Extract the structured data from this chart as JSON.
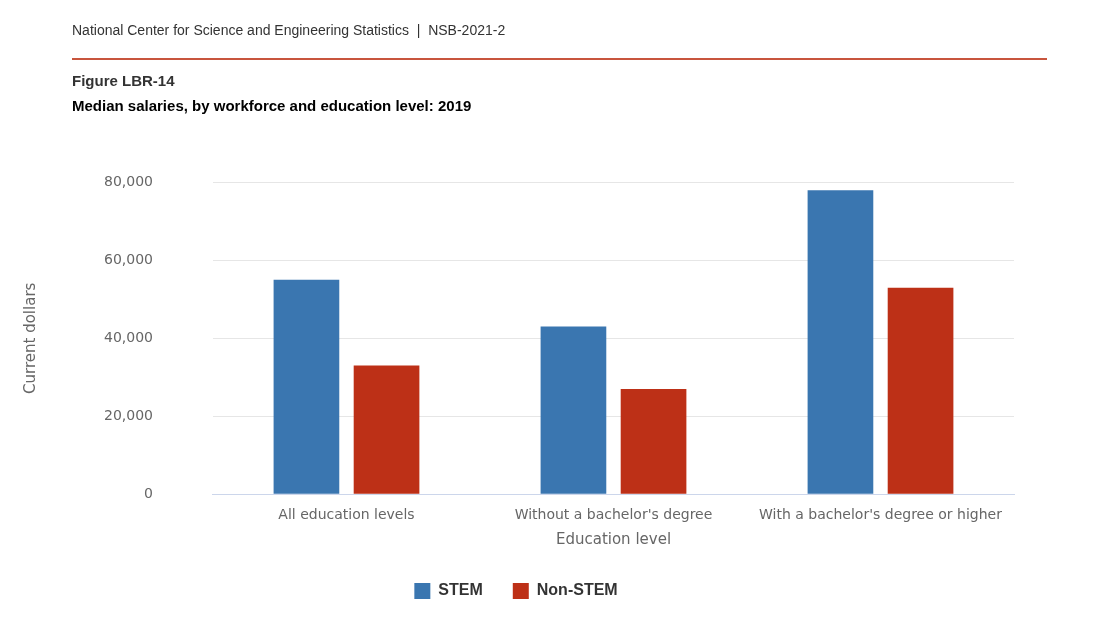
{
  "chart_data": {
    "type": "bar",
    "title": "Median salaries, by workforce and education level: 2019",
    "annotations": [
      "National Center for Science and Engineering Statistics  |  NSB-2021-2",
      "Figure LBR-14"
    ],
    "xlabel": "Education level",
    "ylabel": "Current dollars",
    "categories": [
      "All education levels",
      "Without a bachelor's degree",
      "With a bachelor's degree or higher"
    ],
    "series": [
      {
        "name": "STEM",
        "color": "#3a76b0",
        "values": [
          55000,
          43000,
          78000
        ]
      },
      {
        "name": "Non-STEM",
        "color": "#bd3017",
        "values": [
          33000,
          27000,
          53000
        ]
      }
    ],
    "ylim": [
      0,
      80000
    ],
    "yticks": [
      0,
      {
        "value": 20000,
        "label": "20,000"
      },
      {
        "value": 40000,
        "label": "40,000"
      },
      {
        "value": 60000,
        "label": "60,000"
      },
      {
        "value": 80000,
        "label": "80,000"
      }
    ],
    "grid": "y",
    "legend": "bottom"
  }
}
